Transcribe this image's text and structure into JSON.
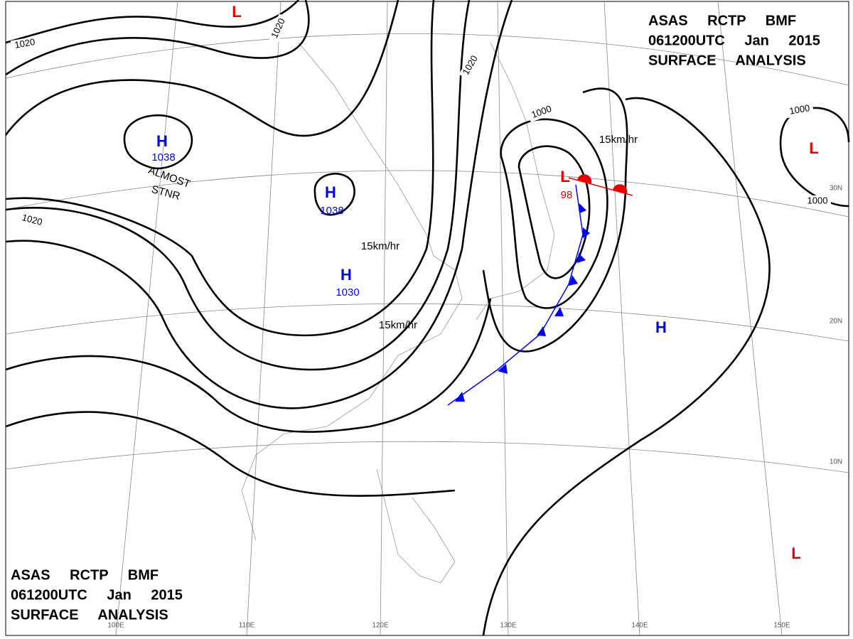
{
  "header": {
    "line1": "ASAS RCTP BMF",
    "line2": "061200UTC Jan 2015",
    "line3": "SURFACE ANALYSIS"
  },
  "footer": {
    "line1": "ASAS RCTP BMF",
    "line2": "061200UTC Jan 2015",
    "line3": "SURFACE ANALYSIS"
  },
  "systems": [
    {
      "label": "H",
      "pressure": "1038"
    },
    {
      "label": "H",
      "pressure": "1038"
    },
    {
      "label": "H",
      "pressure": "1030"
    },
    {
      "label": "L",
      "pressure": "98"
    },
    {
      "label": "L"
    },
    {
      "label": "L"
    },
    {
      "label": "H"
    },
    {
      "label": "L"
    }
  ],
  "isobar_labels": [
    "1020",
    "1020",
    "1020",
    "1000",
    "1000",
    "1000",
    "1020"
  ],
  "motion_labels": [
    "15km/hr",
    "15km/hr",
    "15km/hr"
  ],
  "notes": [
    "ALMOST",
    "STNR"
  ],
  "longitudes": [
    "100E",
    "110E",
    "120E",
    "130E",
    "140E",
    "150E"
  ],
  "latitudes": [
    "30N",
    "20N",
    "10N"
  ]
}
